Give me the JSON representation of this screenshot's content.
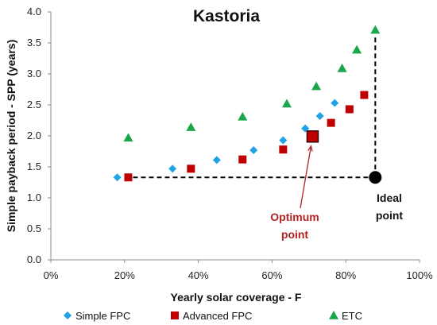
{
  "chart_data": {
    "type": "scatter",
    "title": "Kastoria",
    "xlabel": "Yearly solar coverage - F",
    "ylabel": "Simple payback period - SPP (years)",
    "xlim": [
      0,
      1
    ],
    "ylim": [
      0,
      4
    ],
    "x_ticks": [
      "0%",
      "20%",
      "40%",
      "60%",
      "80%",
      "100%"
    ],
    "y_ticks": [
      "0.0",
      "0.5",
      "1.0",
      "1.5",
      "2.0",
      "2.5",
      "3.0",
      "3.5",
      "4.0"
    ],
    "grid": false,
    "legend_position": "bottom",
    "series": [
      {
        "name": "Simple FPC",
        "marker": "diamond",
        "color": "#1fa2e6",
        "points": [
          [
            0.18,
            1.33
          ],
          [
            0.33,
            1.47
          ],
          [
            0.45,
            1.61
          ],
          [
            0.55,
            1.77
          ],
          [
            0.63,
            1.93
          ],
          [
            0.69,
            2.12
          ],
          [
            0.73,
            2.32
          ],
          [
            0.77,
            2.53
          ]
        ]
      },
      {
        "name": "Advanced FPC",
        "marker": "square",
        "color": "#c00000",
        "points": [
          [
            0.21,
            1.33
          ],
          [
            0.38,
            1.47
          ],
          [
            0.52,
            1.62
          ],
          [
            0.63,
            1.78
          ],
          [
            0.71,
            1.99
          ],
          [
            0.76,
            2.21
          ],
          [
            0.81,
            2.43
          ],
          [
            0.85,
            2.66
          ]
        ]
      },
      {
        "name": "ETC",
        "marker": "triangle",
        "color": "#1aa64b",
        "points": [
          [
            0.21,
            1.97
          ],
          [
            0.38,
            2.14
          ],
          [
            0.52,
            2.31
          ],
          [
            0.64,
            2.52
          ],
          [
            0.72,
            2.8
          ],
          [
            0.79,
            3.09
          ],
          [
            0.83,
            3.39
          ],
          [
            0.88,
            3.71
          ]
        ]
      }
    ],
    "annotations": {
      "optimum": {
        "text_line1": "Optimum",
        "text_line2": "point",
        "color": "#b22222",
        "point": [
          0.71,
          1.99
        ]
      },
      "ideal": {
        "text_line1": "Ideal",
        "text_line2": "point",
        "color": "#111111",
        "point": [
          0.88,
          1.33
        ]
      }
    }
  }
}
